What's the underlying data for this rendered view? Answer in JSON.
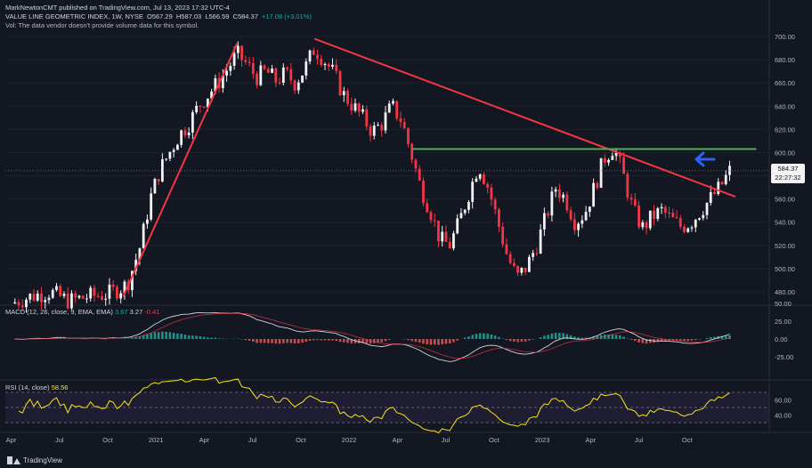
{
  "header": {
    "published": "MarkNewtonCMT published on TradingView.com, Jul 13, 2023 17:32 UTC-4",
    "symbol": "VALUE LINE GEOMETRIC INDEX, 1W, NYSE",
    "open": "O567.29",
    "high": "H587.03",
    "low": "L566.59",
    "close": "C584.37",
    "change": "+17.08 (+3.01%)",
    "vol_note": "Vol: The data vendor doesn't provide volume data for this symbol."
  },
  "price_tag": {
    "price": "584.37",
    "countdown": "22:27:32"
  },
  "macd": {
    "label": "MACD (12, 26, close, 9, EMA, EMA)",
    "v1": "3.67",
    "v2": "3.27",
    "v3": "-0.41"
  },
  "rsi": {
    "label": "RSI (14, close)",
    "value": "58.56"
  },
  "footer": {
    "brand": "TradingView"
  },
  "colors": {
    "up": "#26a69a",
    "down": "#ef5350",
    "candle_up": "#f2f2f2",
    "candle_down": "#f23645",
    "trend": "#f23645",
    "support": "#4caf50",
    "arrow": "#2962ff",
    "rsi": "#f7e61b"
  },
  "chart_data": {
    "type": "candlestick",
    "x_labels": [
      "Apr",
      "Jul",
      "Oct",
      "2021",
      "Apr",
      "Jul",
      "Oct",
      "2022",
      "Apr",
      "Jul",
      "Oct",
      "2023",
      "Apr",
      "Jul",
      "Oct"
    ],
    "price_axis": [
      "700.00",
      "680.00",
      "660.00",
      "640.00",
      "620.00",
      "600.00",
      "580.00",
      "560.00",
      "540.00",
      "520.00",
      "500.00",
      "480.00"
    ],
    "macd_axis": [
      "50.00",
      "25.00",
      "0.00",
      "-25.00"
    ],
    "rsi_axis": [
      "60.00",
      "40.00"
    ],
    "price_ylim": [
      472,
      705
    ],
    "close_path": [
      [
        2020.25,
        470
      ],
      [
        2020.35,
        476
      ],
      [
        2020.45,
        480
      ],
      [
        2020.55,
        472
      ],
      [
        2020.65,
        476
      ],
      [
        2020.75,
        478
      ],
      [
        2020.85,
        486
      ],
      [
        2020.92,
        520
      ],
      [
        2020.97,
        560
      ],
      [
        2021.02,
        585
      ],
      [
        2021.07,
        600
      ],
      [
        2021.12,
        615
      ],
      [
        2021.17,
        625
      ],
      [
        2021.22,
        640
      ],
      [
        2021.27,
        650
      ],
      [
        2021.32,
        660
      ],
      [
        2021.37,
        672
      ],
      [
        2021.42,
        685
      ],
      [
        2021.47,
        676
      ],
      [
        2021.52,
        665
      ],
      [
        2021.57,
        670
      ],
      [
        2021.62,
        662
      ],
      [
        2021.67,
        668
      ],
      [
        2021.72,
        660
      ],
      [
        2021.77,
        672
      ],
      [
        2021.82,
        690
      ],
      [
        2021.87,
        680
      ],
      [
        2021.92,
        668
      ],
      [
        2021.97,
        650
      ],
      [
        2022.02,
        640
      ],
      [
        2022.07,
        630
      ],
      [
        2022.12,
        618
      ],
      [
        2022.17,
        625
      ],
      [
        2022.22,
        640
      ],
      [
        2022.27,
        628
      ],
      [
        2022.32,
        600
      ],
      [
        2022.37,
        570
      ],
      [
        2022.42,
        550
      ],
      [
        2022.47,
        525
      ],
      [
        2022.52,
        520
      ],
      [
        2022.57,
        540
      ],
      [
        2022.62,
        565
      ],
      [
        2022.67,
        590
      ],
      [
        2022.72,
        570
      ],
      [
        2022.77,
        540
      ],
      [
        2022.82,
        510
      ],
      [
        2022.87,
        492
      ],
      [
        2022.92,
        502
      ],
      [
        2022.97,
        520
      ],
      [
        2023.02,
        545
      ],
      [
        2023.07,
        570
      ],
      [
        2023.12,
        560
      ],
      [
        2023.17,
        540
      ],
      [
        2023.22,
        548
      ],
      [
        2023.27,
        570
      ],
      [
        2023.32,
        595
      ],
      [
        2023.37,
        605
      ],
      [
        2023.42,
        580
      ],
      [
        2023.47,
        550
      ],
      [
        2023.52,
        535
      ],
      [
        2023.57,
        545
      ],
      [
        2023.62,
        550
      ],
      [
        2023.67,
        542
      ],
      [
        2023.72,
        536
      ],
      [
        2023.77,
        540
      ],
      [
        2023.82,
        550
      ],
      [
        2023.87,
        560
      ],
      [
        2023.92,
        570
      ],
      [
        2023.97,
        584
      ]
    ],
    "trendlines": [
      {
        "name": "rising",
        "from": [
          2020.83,
          476
        ],
        "to": [
          2021.42,
          694
        ]
      },
      {
        "name": "falling",
        "from": [
          2021.82,
          698
        ],
        "to": [
          2024.0,
          562
        ]
      }
    ],
    "support_level": 603,
    "last_price": 584.37
  }
}
